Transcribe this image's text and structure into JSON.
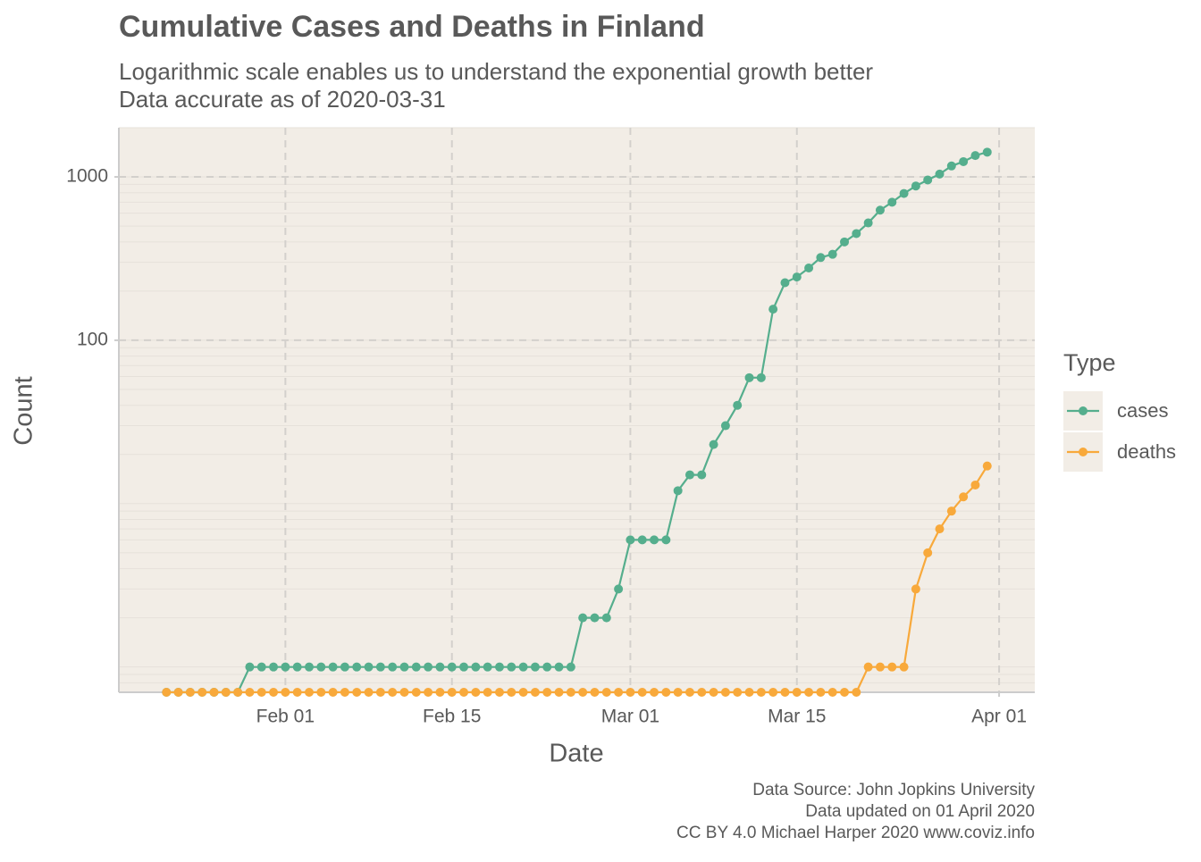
{
  "chart_data": {
    "type": "line",
    "title": "Cumulative Cases and Deaths in Finland",
    "subtitle": [
      "Logarithmic scale enables us to understand the exponential growth better",
      "Data accurate as of 2020-03-31"
    ],
    "x_label": "Date",
    "y_label": "Count",
    "legend_title": "Type",
    "caption": [
      "Data Source: John Jopkins University",
      "Data updated on 01 April 2020",
      "CC BY 4.0 Michael Harper 2020 www.coviz.info"
    ],
    "y_scale": "log",
    "grid": true,
    "minor_grid": true,
    "legend_position": "right",
    "ylim": [
      0.7,
      2000
    ],
    "yticks": [
      100,
      1000
    ],
    "xlim": [
      "2020-01-18",
      "2020-04-04"
    ],
    "xticks": [
      {
        "value": "2020-02-01",
        "label": "Feb 01"
      },
      {
        "value": "2020-02-15",
        "label": "Feb 15"
      },
      {
        "value": "2020-03-01",
        "label": "Mar 01"
      },
      {
        "value": "2020-03-15",
        "label": "Mar 15"
      },
      {
        "value": "2020-04-01",
        "label": "Apr 01"
      }
    ],
    "x": [
      "2020-01-22",
      "2020-01-23",
      "2020-01-24",
      "2020-01-25",
      "2020-01-26",
      "2020-01-27",
      "2020-01-28",
      "2020-01-29",
      "2020-01-30",
      "2020-01-31",
      "2020-02-01",
      "2020-02-02",
      "2020-02-03",
      "2020-02-04",
      "2020-02-05",
      "2020-02-06",
      "2020-02-07",
      "2020-02-08",
      "2020-02-09",
      "2020-02-10",
      "2020-02-11",
      "2020-02-12",
      "2020-02-13",
      "2020-02-14",
      "2020-02-15",
      "2020-02-16",
      "2020-02-17",
      "2020-02-18",
      "2020-02-19",
      "2020-02-20",
      "2020-02-21",
      "2020-02-22",
      "2020-02-23",
      "2020-02-24",
      "2020-02-25",
      "2020-02-26",
      "2020-02-27",
      "2020-02-28",
      "2020-02-29",
      "2020-03-01",
      "2020-03-02",
      "2020-03-03",
      "2020-03-04",
      "2020-03-05",
      "2020-03-06",
      "2020-03-07",
      "2020-03-08",
      "2020-03-09",
      "2020-03-10",
      "2020-03-11",
      "2020-03-12",
      "2020-03-13",
      "2020-03-14",
      "2020-03-15",
      "2020-03-16",
      "2020-03-17",
      "2020-03-18",
      "2020-03-19",
      "2020-03-20",
      "2020-03-21",
      "2020-03-22",
      "2020-03-23",
      "2020-03-24",
      "2020-03-25",
      "2020-03-26",
      "2020-03-27",
      "2020-03-28",
      "2020-03-29",
      "2020-03-30",
      "2020-03-31"
    ],
    "series": [
      {
        "name": "cases",
        "color": "#55ae8d",
        "values": [
          0,
          0,
          0,
          0,
          0,
          0,
          0,
          1,
          1,
          1,
          1,
          1,
          1,
          1,
          1,
          1,
          1,
          1,
          1,
          1,
          1,
          1,
          1,
          1,
          1,
          1,
          1,
          1,
          1,
          1,
          1,
          1,
          1,
          1,
          1,
          2,
          2,
          2,
          3,
          6,
          6,
          6,
          6,
          12,
          15,
          15,
          23,
          30,
          40,
          59,
          59,
          155,
          225,
          244,
          277,
          321,
          336,
          400,
          450,
          523,
          626,
          700,
          792,
          880,
          958,
          1041,
          1167,
          1240,
          1352,
          1418
        ]
      },
      {
        "name": "deaths",
        "color": "#f8a93b",
        "values": [
          0,
          0,
          0,
          0,
          0,
          0,
          0,
          0,
          0,
          0,
          0,
          0,
          0,
          0,
          0,
          0,
          0,
          0,
          0,
          0,
          0,
          0,
          0,
          0,
          0,
          0,
          0,
          0,
          0,
          0,
          0,
          0,
          0,
          0,
          0,
          0,
          0,
          0,
          0,
          0,
          0,
          0,
          0,
          0,
          0,
          0,
          0,
          0,
          0,
          0,
          0,
          0,
          0,
          0,
          0,
          0,
          0,
          0,
          0,
          1,
          1,
          1,
          1,
          3,
          5,
          7,
          9,
          11,
          13,
          17
        ]
      }
    ]
  }
}
